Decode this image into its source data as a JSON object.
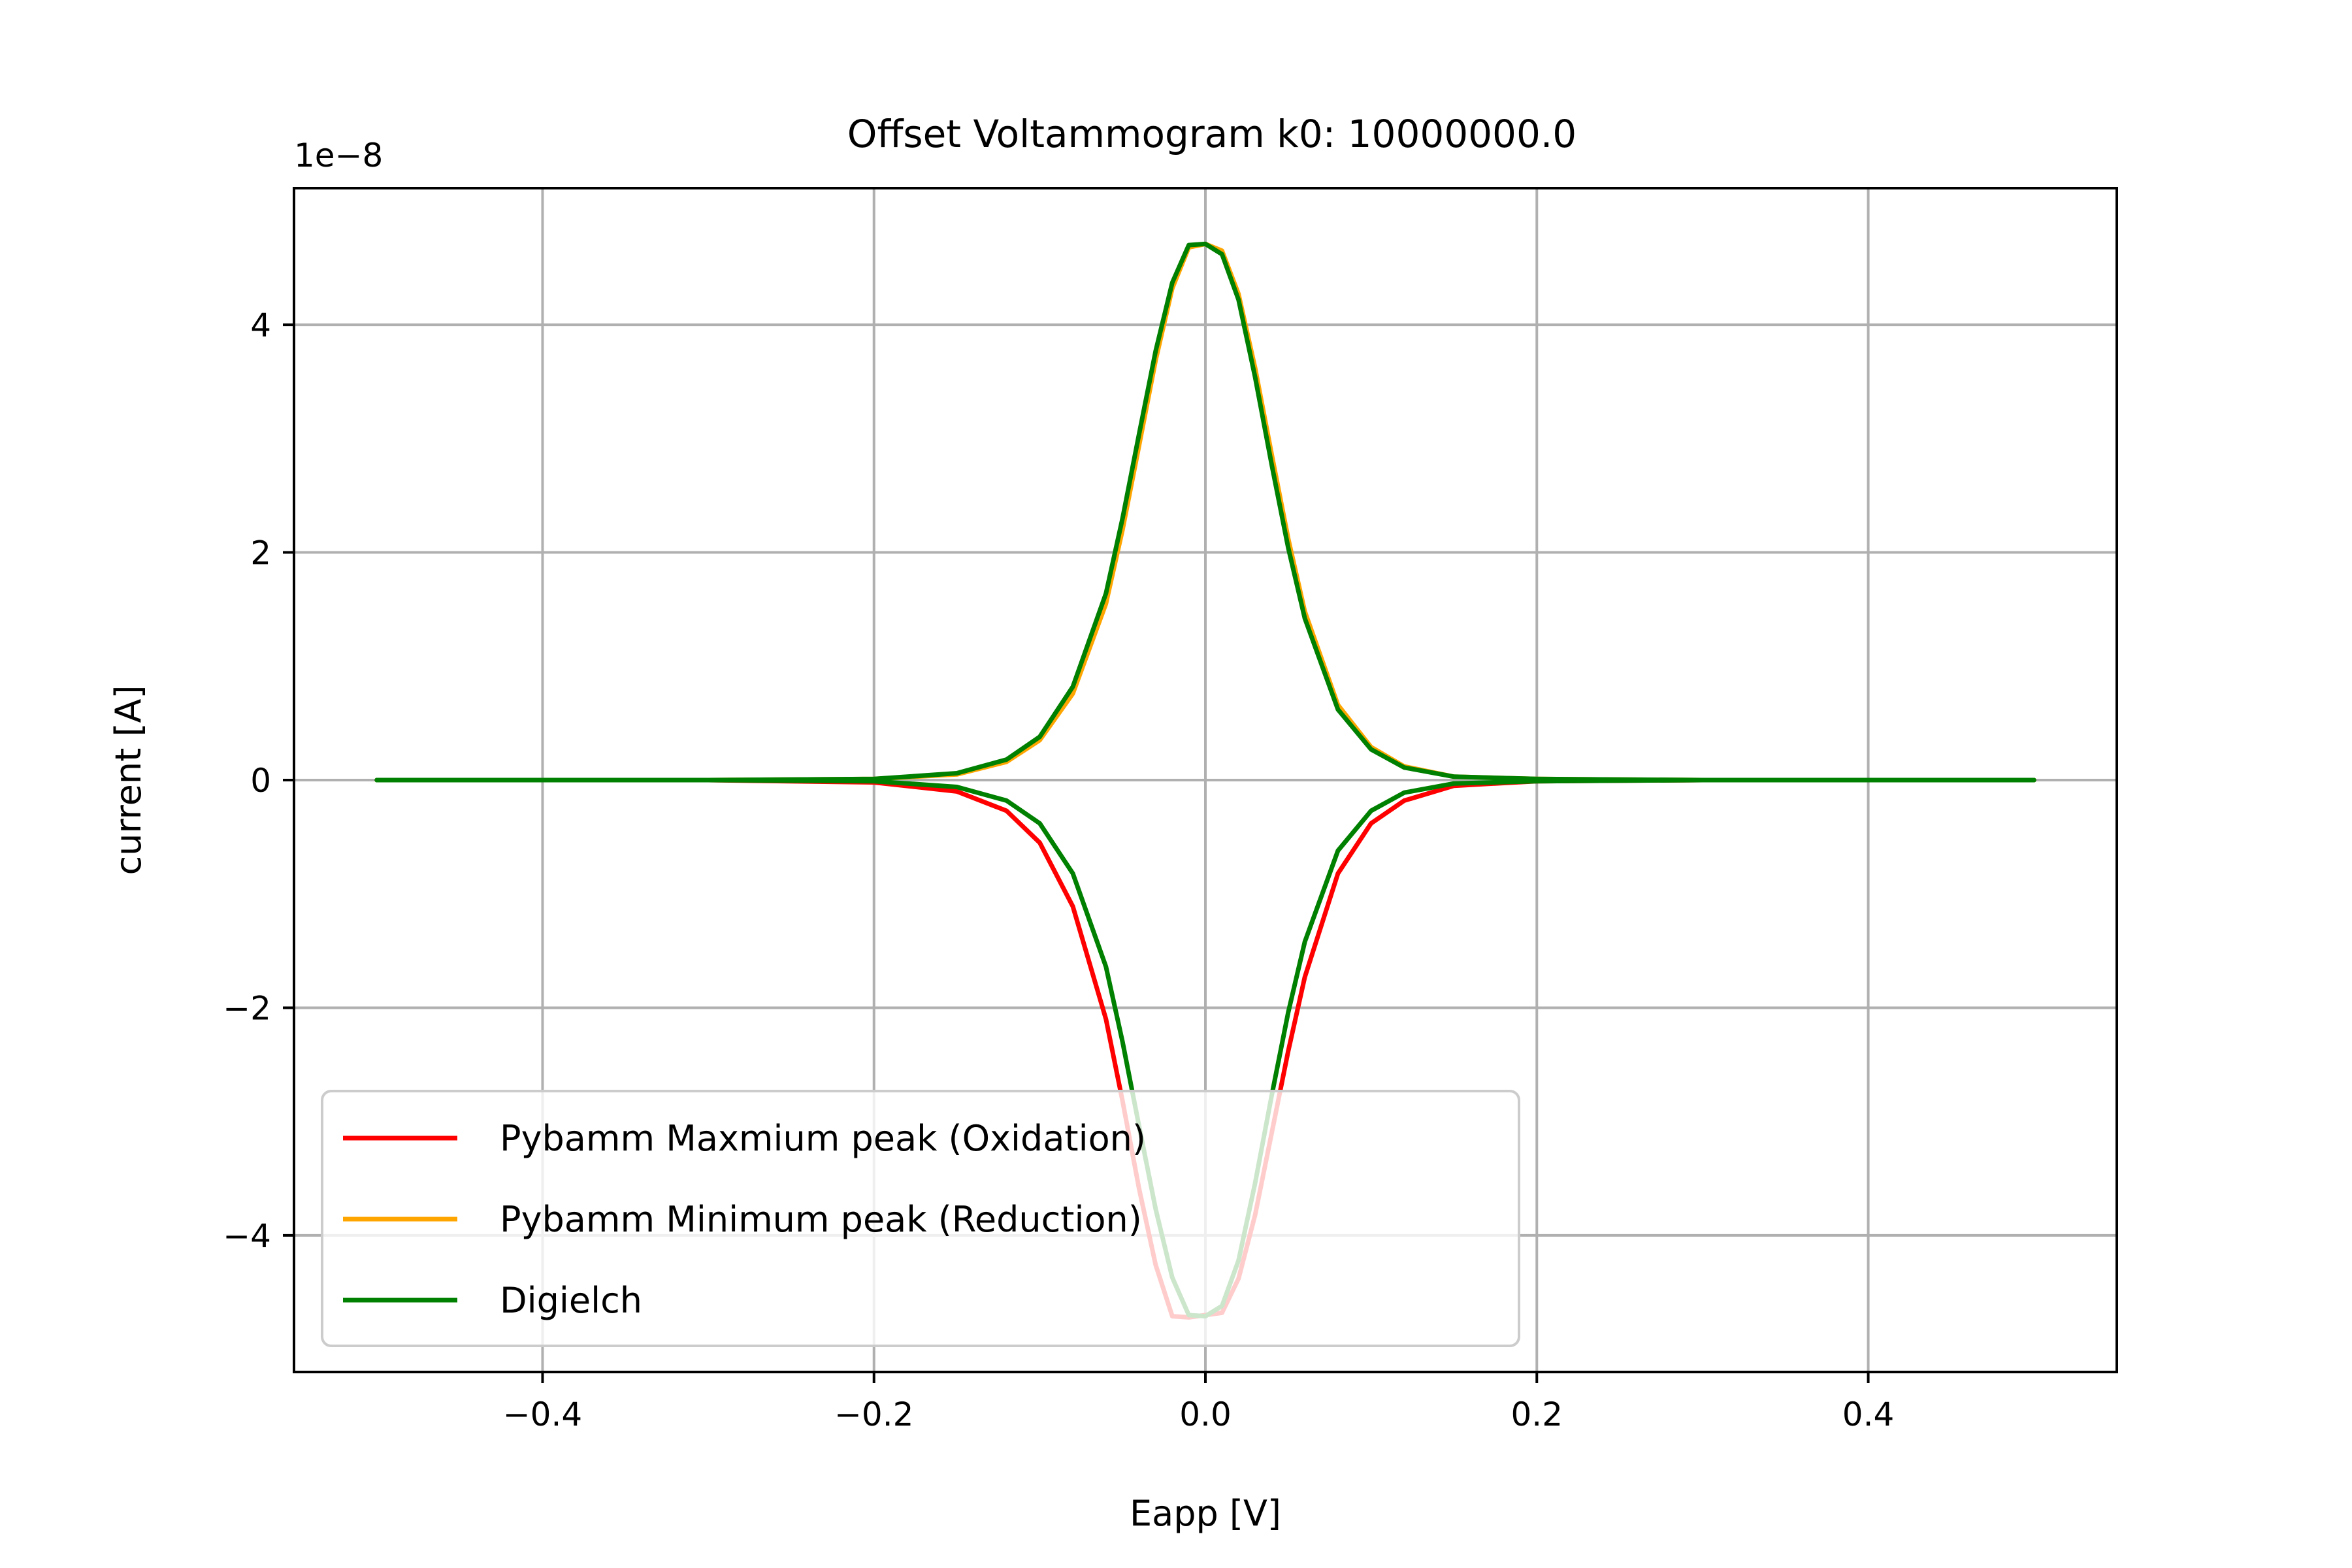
{
  "chart_data": {
    "type": "line",
    "title": "Offset Voltammogram k0: 10000000.0",
    "xlabel": "Eapp [V]",
    "ylabel": "current [A]",
    "y_scale_label": "1e−8",
    "xlim": [
      -0.55,
      0.55
    ],
    "ylim": [
      -5.2,
      5.2
    ],
    "x_ticks": [
      -0.4,
      -0.2,
      0.0,
      0.2,
      0.4
    ],
    "x_tick_labels": [
      "−0.4",
      "−0.2",
      "0.0",
      "0.2",
      "0.4"
    ],
    "y_ticks": [
      -4,
      -2,
      0,
      2,
      4
    ],
    "y_tick_labels": [
      "−4",
      "−2",
      "0",
      "2",
      "4"
    ],
    "grid": true,
    "legend_position": "lower-left",
    "series": [
      {
        "name": "Pybamm Maxmium peak (Oxidation)",
        "color": "#ff0000",
        "x": [
          -0.5,
          -0.3,
          -0.2,
          -0.15,
          -0.12,
          -0.1,
          -0.08,
          -0.06,
          -0.05,
          -0.04,
          -0.03,
          -0.02,
          -0.01,
          0.0,
          0.01,
          0.02,
          0.03,
          0.04,
          0.05,
          0.06,
          0.08,
          0.1,
          0.12,
          0.15,
          0.2,
          0.3,
          0.5
        ],
        "y": [
          0,
          0,
          -0.02,
          -0.1,
          -0.27,
          -0.55,
          -1.11,
          -2.1,
          -2.82,
          -3.59,
          -4.26,
          -4.71,
          -4.72,
          -4.7,
          -4.68,
          -4.38,
          -3.82,
          -3.1,
          -2.38,
          -1.73,
          -0.82,
          -0.38,
          -0.18,
          -0.05,
          -0.01,
          0,
          0
        ]
      },
      {
        "name": "Pybamm Minimum peak (Reduction)",
        "color": "#ffa500",
        "x": [
          -0.5,
          -0.3,
          -0.2,
          -0.15,
          -0.12,
          -0.1,
          -0.08,
          -0.06,
          -0.05,
          -0.04,
          -0.03,
          -0.02,
          -0.01,
          0.0,
          0.01,
          0.02,
          0.03,
          0.04,
          0.05,
          0.06,
          0.08,
          0.1,
          0.12,
          0.15,
          0.2,
          0.3,
          0.5
        ],
        "y": [
          0,
          0,
          0.01,
          0.05,
          0.16,
          0.35,
          0.76,
          1.55,
          2.2,
          2.94,
          3.69,
          4.32,
          4.68,
          4.71,
          4.65,
          4.27,
          3.62,
          2.86,
          2.12,
          1.48,
          0.66,
          0.29,
          0.12,
          0.03,
          0.01,
          0,
          0
        ]
      },
      {
        "name": "Digielch",
        "color": "#008000",
        "x": [
          -0.5,
          -0.3,
          -0.2,
          -0.15,
          -0.12,
          -0.1,
          -0.08,
          -0.06,
          -0.05,
          -0.04,
          -0.03,
          -0.02,
          -0.01,
          0.0,
          0.01,
          0.02,
          0.03,
          0.04,
          0.05,
          0.06,
          0.08,
          0.1,
          0.12,
          0.15,
          0.2,
          0.3,
          0.5
        ],
        "y": [
          0,
          0,
          0.01,
          0.06,
          0.18,
          0.38,
          0.82,
          1.64,
          2.3,
          3.04,
          3.77,
          4.37,
          4.7,
          4.71,
          4.62,
          4.22,
          3.54,
          2.77,
          2.04,
          1.42,
          0.62,
          0.27,
          0.11,
          0.03,
          0.01,
          0,
          0
        ]
      },
      {
        "name": "",
        "color": "#008000",
        "x": [
          -0.5,
          -0.3,
          -0.2,
          -0.15,
          -0.12,
          -0.1,
          -0.08,
          -0.06,
          -0.05,
          -0.04,
          -0.03,
          -0.02,
          -0.01,
          0.0,
          0.01,
          0.02,
          0.03,
          0.04,
          0.05,
          0.06,
          0.08,
          0.1,
          0.12,
          0.15,
          0.2,
          0.3,
          0.5
        ],
        "y": [
          0,
          0,
          -0.01,
          -0.06,
          -0.18,
          -0.38,
          -0.82,
          -1.64,
          -2.3,
          -3.04,
          -3.77,
          -4.37,
          -4.7,
          -4.71,
          -4.62,
          -4.22,
          -3.54,
          -2.77,
          -2.04,
          -1.42,
          -0.62,
          -0.27,
          -0.11,
          -0.03,
          -0.01,
          0,
          0
        ]
      }
    ]
  }
}
